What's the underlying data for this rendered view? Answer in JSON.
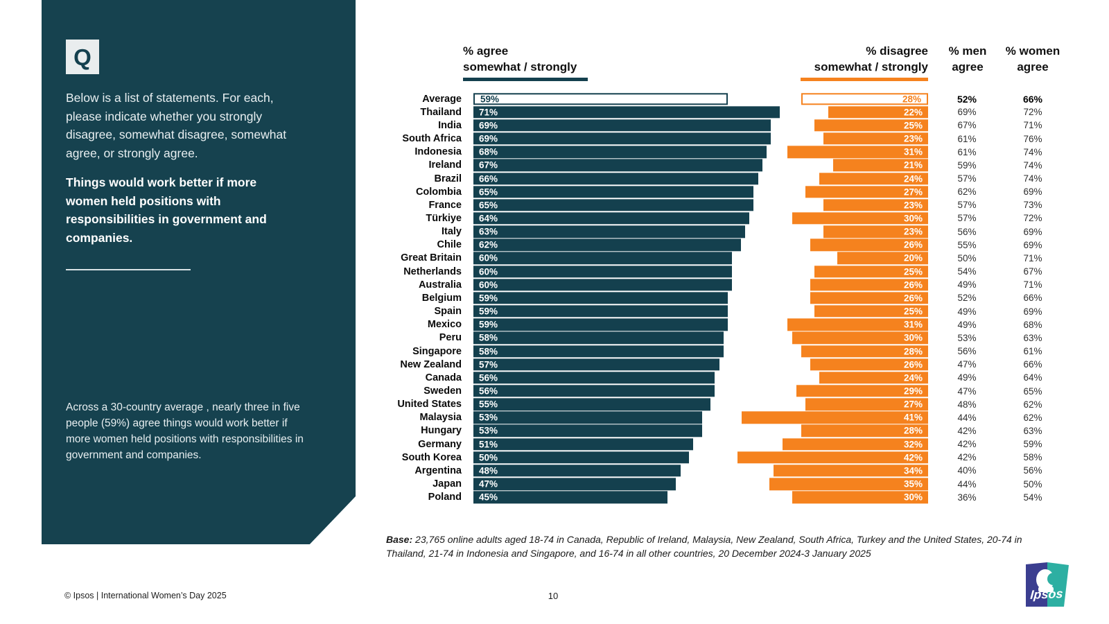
{
  "colors": {
    "teal": "#14404E",
    "orange": "#F5821E",
    "sidebar_bg": "#16424F",
    "q_box_bg": "#E9EDEE",
    "logo_indigo": "#3B3E90",
    "logo_teal": "#2DAFA2"
  },
  "sidebar": {
    "q_label": "Q",
    "intro": "Below is a list of statements. For each, please indicate whether you strongly disagree, somewhat disagree, somewhat agree, or strongly agree.",
    "statement": "Things would work better if more women held positions with responsibilities in government and companies.",
    "summary": "Across a 30-country average , nearly three in five people (59%) agree things would work better if more women held positions with responsibilities in government and companies."
  },
  "chart": {
    "headers": {
      "agree": "% agree\nsomewhat / strongly",
      "disagree": "% disagree\nsomewhat / strongly",
      "men": "% men\nagree",
      "women": "% women\nagree"
    }
  },
  "chart_data": {
    "type": "bar",
    "orientation": "horizontal",
    "value_suffix": "%",
    "highlight_category": "Average",
    "xlim": [
      0,
      100
    ],
    "grid": false,
    "legend_position": "column headers above chart",
    "categories": [
      "Average",
      "Thailand",
      "India",
      "South Africa",
      "Indonesia",
      "Ireland",
      "Brazil",
      "Colombia",
      "France",
      "Türkiye",
      "Italy",
      "Chile",
      "Great Britain",
      "Netherlands",
      "Australia",
      "Belgium",
      "Spain",
      "Mexico",
      "Peru",
      "Singapore",
      "New Zealand",
      "Canada",
      "Sweden",
      "United States",
      "Malaysia",
      "Hungary",
      "Germany",
      "South Korea",
      "Argentina",
      "Japan",
      "Poland"
    ],
    "series": [
      {
        "name": "% agree somewhat / strongly",
        "color": "#14404E",
        "values": [
          59,
          71,
          69,
          69,
          68,
          67,
          66,
          65,
          65,
          64,
          63,
          62,
          60,
          60,
          60,
          59,
          59,
          59,
          58,
          58,
          57,
          56,
          56,
          55,
          53,
          53,
          51,
          50,
          48,
          47,
          45
        ]
      },
      {
        "name": "% disagree somewhat / strongly",
        "color": "#F5821E",
        "values": [
          28,
          22,
          25,
          23,
          31,
          21,
          24,
          27,
          23,
          30,
          23,
          26,
          20,
          25,
          26,
          26,
          25,
          31,
          30,
          28,
          26,
          24,
          29,
          27,
          41,
          28,
          32,
          42,
          34,
          35,
          30
        ]
      },
      {
        "name": "% men agree",
        "values": [
          52,
          69,
          67,
          61,
          61,
          59,
          57,
          62,
          57,
          57,
          56,
          55,
          50,
          54,
          49,
          52,
          49,
          49,
          53,
          56,
          47,
          49,
          47,
          48,
          44,
          42,
          42,
          42,
          40,
          44,
          36
        ]
      },
      {
        "name": "% women agree",
        "values": [
          66,
          72,
          71,
          76,
          74,
          74,
          74,
          69,
          73,
          72,
          69,
          69,
          71,
          67,
          71,
          66,
          69,
          68,
          63,
          61,
          66,
          64,
          65,
          62,
          62,
          63,
          59,
          58,
          56,
          50,
          54
        ]
      }
    ]
  },
  "footnote": {
    "label": "Base:",
    "text": " 23,765 online adults aged 18-74 in Canada, Republic of Ireland, Malaysia, New Zealand, South Africa, Turkey and the United States, 20-74 in Thailand, 21-74 in Indonesia and Singapore, and 16-74 in all other countries, 20 December 2024-3 January 2025"
  },
  "footer": {
    "copyright": "© Ipsos | International Women’s Day 2025",
    "page_number": "10",
    "logo_text": "Ipsos"
  }
}
